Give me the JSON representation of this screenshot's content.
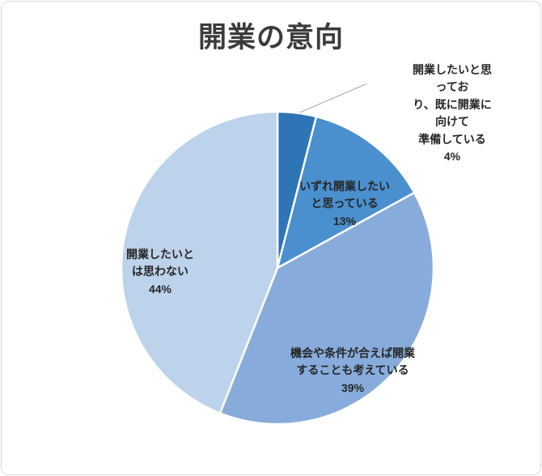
{
  "chart_data": {
    "type": "pie",
    "title": "開業の意向",
    "categories": [
      "開業したいと思っており、既に開業に向けて準備している",
      "いずれ開業したいと思っている",
      "機会や条件が合えば開業することも考えている",
      "開業したいとは思わない"
    ],
    "values": [
      4,
      13,
      39,
      44
    ],
    "unit": "%",
    "colors": [
      "#2E75B6",
      "#4A8FCE",
      "#87ACDC",
      "#BDD2EB"
    ],
    "start_angle_deg": 0,
    "direction": "clockwise",
    "legend": "none",
    "slice_border_color": "#FFFFFF",
    "labels": [
      {
        "lines": [
          "開業したいと思ってお",
          "り、既に開業に向けて",
          "準備している"
        ],
        "pct": "4%",
        "placement": "outside-with-leader-line"
      },
      {
        "lines": [
          "いずれ開業したい",
          "と思っている"
        ],
        "pct": "13%",
        "placement": "inside"
      },
      {
        "lines": [
          "機会や条件が合えば開業",
          "することも考えている"
        ],
        "pct": "39%",
        "placement": "inside"
      },
      {
        "lines": [
          "開業したいと",
          "は思わない"
        ],
        "pct": "44%",
        "placement": "inside"
      }
    ]
  }
}
